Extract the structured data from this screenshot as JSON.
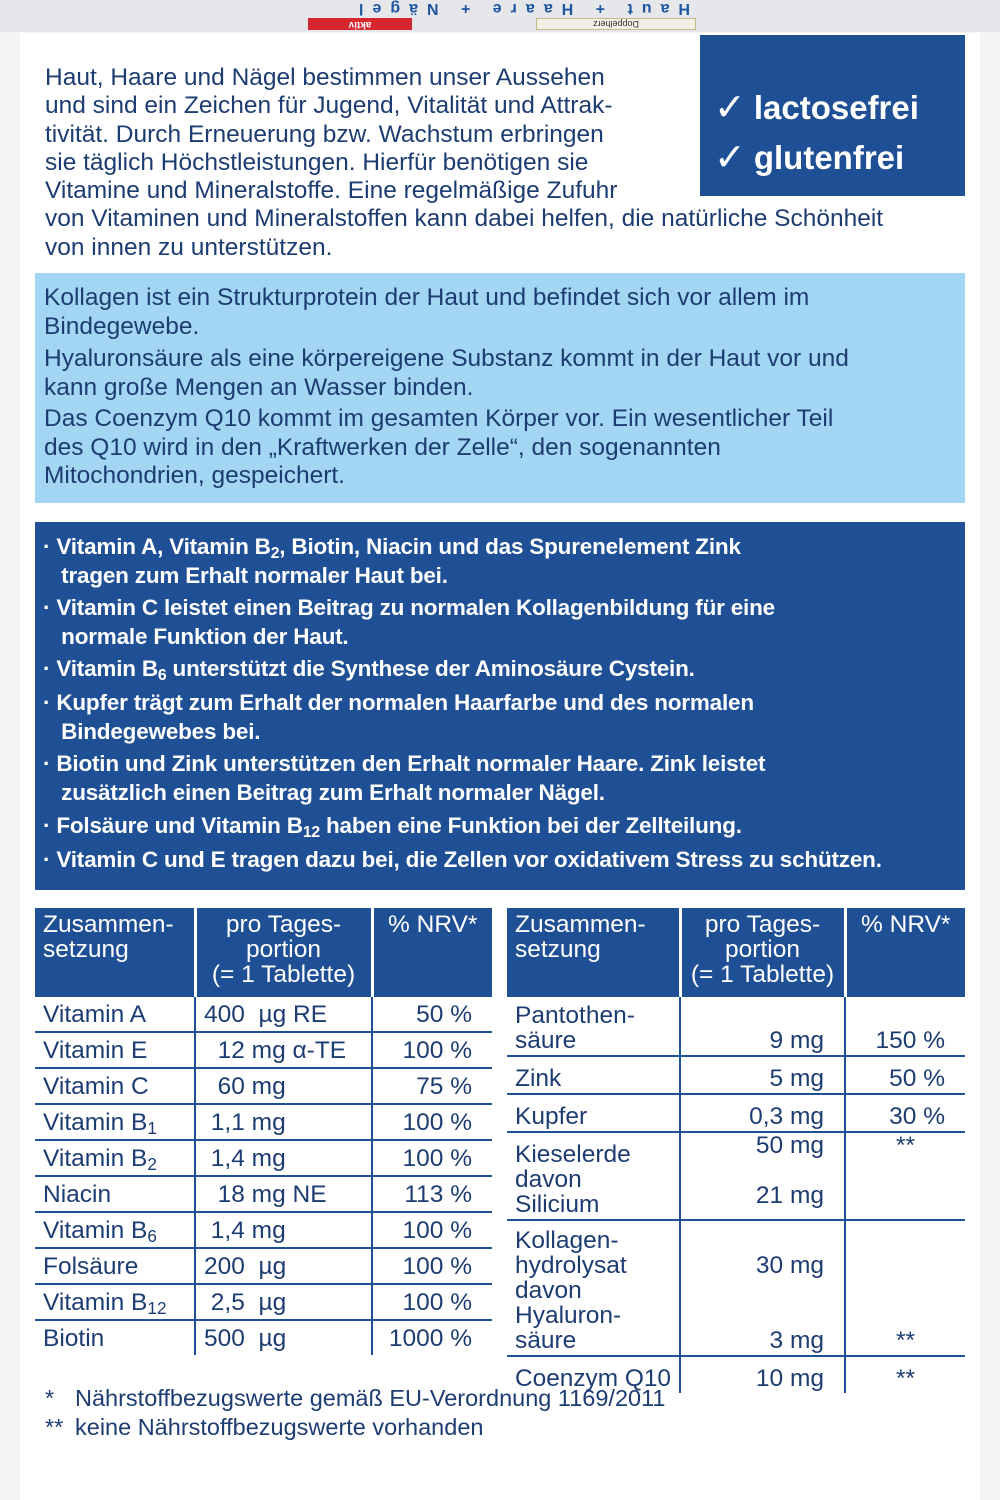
{
  "package_top": {
    "title": "Haut + Haare + Nägel",
    "badge": "aktiv",
    "logo": "Doppelherz"
  },
  "intro": "Haut, Haare und Nägel bestimmen unser Aussehen\nund sind ein Zeichen für Jugend, Vitalität und Attrak-\ntivität. Durch Erneuerung bzw. Wachstum erbringen\nsie täglich Höchstleistungen. Hierfür benötigen sie\nVitamine und Mineralstoffe. Eine regelmäßige Zufuhr\nvon Vitaminen und Mineralstoffen kann dabei helfen, die natürliche Schönheit\nvon innen zu unterstützen.",
  "badge": {
    "color": "#1f4f94",
    "items": [
      {
        "icon": "check-icon",
        "label": "lactosefrei"
      },
      {
        "icon": "check-icon",
        "label": "glutenfrei"
      }
    ]
  },
  "info_box": {
    "color": "#a3d6f3",
    "paragraphs": [
      "Kollagen ist ein Strukturprotein der Haut und befindet sich vor allem im\nBindegewebe.",
      "Hyaluronsäure als eine körpereigene Substanz kommt in der Haut vor und\nkann große Mengen an Wasser binden.",
      "Das Coenzym Q10 kommt im gesamten Körper vor. Ein wesentlicher Teil\ndes Q10 wird in den „Kraftwerken der Zelle“, den sogenannten\nMitochondrien, gespeichert."
    ]
  },
  "claims": [
    [
      {
        "t": "· Vitamin A, Vitamin B"
      },
      {
        "sub": "2"
      },
      {
        "t": ", Biotin, Niacin und das Spurenelement Zink\n   tragen zum Erhalt normaler Haut bei."
      }
    ],
    [
      {
        "t": "· Vitamin C leistet einen Beitrag zu normalen Kollagenbildung für eine\n   normale Funktion der Haut."
      }
    ],
    [
      {
        "t": "· Vitamin B"
      },
      {
        "sub": "6"
      },
      {
        "t": " unterstützt die Synthese der Aminosäure Cystein."
      }
    ],
    [
      {
        "t": "· Kupfer trägt zum Erhalt der normalen Haarfarbe und des normalen\n   Bindegewebes bei."
      }
    ],
    [
      {
        "t": "· Biotin und Zink unterstützen den Erhalt normaler Haare. Zink leistet\n   zusätzlich einen Beitrag zum Erhalt normaler Nägel."
      }
    ],
    [
      {
        "t": "· Folsäure und Vitamin B"
      },
      {
        "sub": "12"
      },
      {
        "t": " haben eine Funktion bei der Zellteilung."
      }
    ],
    [
      {
        "t": "· Vitamin C und E tragen dazu bei, die Zellen vor oxidativem Stress zu schützen."
      }
    ]
  ],
  "table_headers": [
    "Zusammen-\nsetzung",
    "pro Tages-\nportion\n(= 1 Tablette)",
    "% NRV*"
  ],
  "table_left": [
    {
      "name": "Vitamin A",
      "sub": "",
      "amount": "400  µg RE",
      "nrv": "50 %"
    },
    {
      "name": "Vitamin E",
      "sub": "",
      "amount": "  12 mg α-TE",
      "nrv": "100 %"
    },
    {
      "name": "Vitamin C",
      "sub": "",
      "amount": "  60 mg",
      "nrv": "75 %"
    },
    {
      "name": "Vitamin B",
      "sub": "1",
      "amount": " 1,1 mg",
      "nrv": "100 %"
    },
    {
      "name": "Vitamin B",
      "sub": "2",
      "amount": " 1,4 mg",
      "nrv": "100 %"
    },
    {
      "name": "Niacin",
      "sub": "",
      "amount": "  18 mg NE",
      "nrv": "113 %"
    },
    {
      "name": "Vitamin B",
      "sub": "6",
      "amount": " 1,4 mg",
      "nrv": "100 %"
    },
    {
      "name": "Folsäure",
      "sub": "",
      "amount": "200  µg",
      "nrv": "100 %"
    },
    {
      "name": "Vitamin B",
      "sub": "12",
      "amount": " 2,5  µg",
      "nrv": "100 %"
    },
    {
      "name": "Biotin",
      "sub": "",
      "amount": "500  µg",
      "nrv": "1000 %"
    }
  ],
  "table_right": [
    {
      "name": "Pantothen-\nsäure",
      "amount": "9 mg",
      "nrv": "150 %"
    },
    {
      "name": "Zink",
      "amount": "5 mg",
      "nrv": "50 %"
    },
    {
      "name": "Kupfer",
      "amount": "0,3 mg",
      "nrv": "30 %"
    },
    {
      "name": "Kieselerde\ndavon\nSilicium",
      "amount": "50 mg\n\n21 mg",
      "nrv": "**\n\n"
    },
    {
      "name": "Kollagen-\nhydrolysat\ndavon\nHyaluron-\nsäure",
      "amount": "\n30 mg\n\n\n3 mg",
      "nrv": "**"
    },
    {
      "name": "Coenzym Q10",
      "amount": "10 mg",
      "nrv": "**"
    }
  ],
  "footnotes": [
    {
      "mark": "*",
      "text": "Nährstoffbezugswerte gemäß EU-Verordnung 1169/2011"
    },
    {
      "mark": "**",
      "text": "keine Nährstoffbezugswerte vorhanden"
    }
  ]
}
